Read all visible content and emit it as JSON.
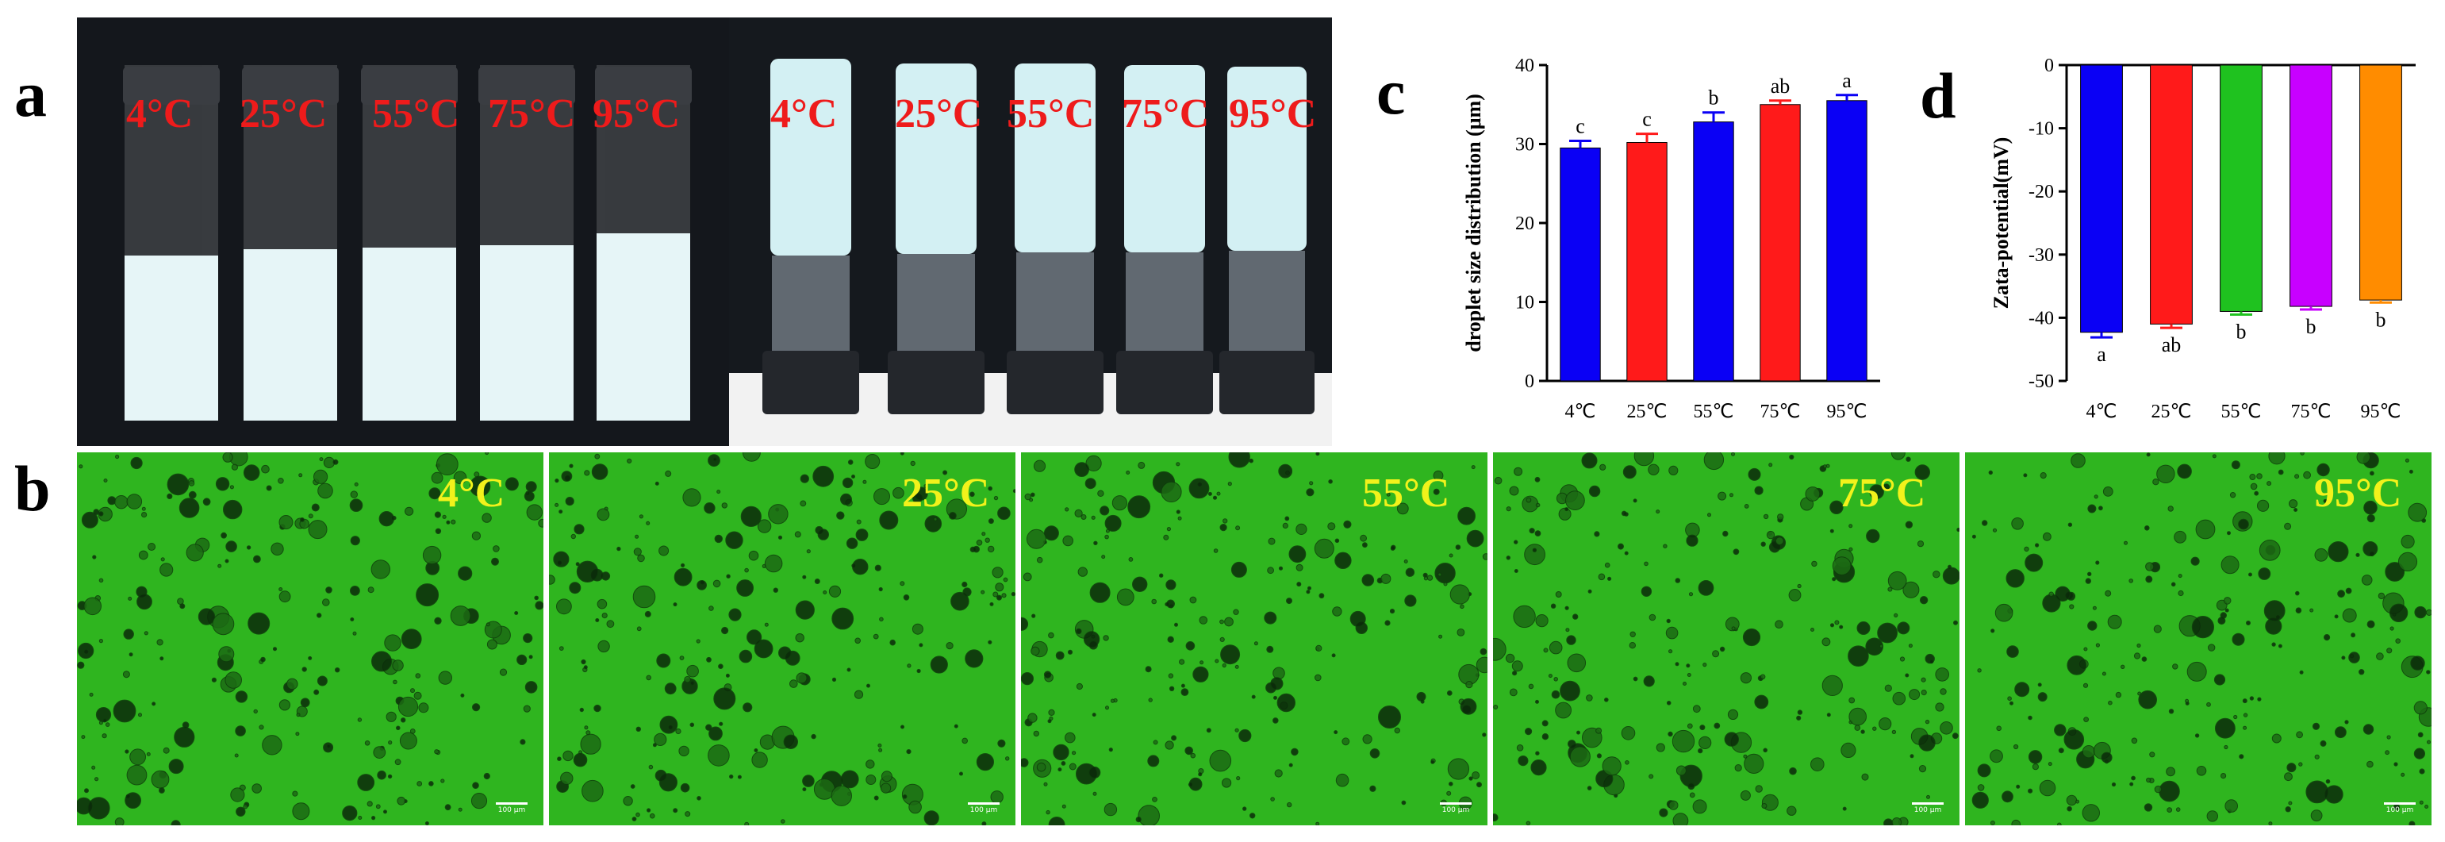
{
  "panels": {
    "a": {
      "letter": "a",
      "left_photo_labels": [
        "4°C",
        "25°C",
        "55°C",
        "75°C",
        "95°C"
      ],
      "right_photo_labels": [
        "4°C",
        "25°C",
        "55°C",
        "75°C",
        "95°C"
      ]
    },
    "b": {
      "letter": "b",
      "labels": [
        "4°C",
        "25°C",
        "55°C",
        "75°C",
        "95°C"
      ],
      "scalebar_text": [
        "100 μm",
        "100 μm",
        "100 μm",
        "100 μm",
        "100 μm"
      ]
    },
    "c": {
      "letter": "c"
    },
    "d": {
      "letter": "d"
    }
  },
  "chart_data": [
    {
      "panel": "c",
      "type": "bar",
      "categories": [
        "4℃",
        "25℃",
        "55℃",
        "75℃",
        "95℃"
      ],
      "values": [
        29.5,
        30.2,
        32.8,
        35.0,
        35.5
      ],
      "errors": [
        0.9,
        1.1,
        1.2,
        0.5,
        0.7
      ],
      "significance": [
        "c",
        "c",
        "b",
        "ab",
        "a"
      ],
      "colors": [
        "#0a00f5",
        "#ff1a1a",
        "#0a00f5",
        "#ff1a1a",
        "#0a00f5"
      ],
      "xlabel": "",
      "ylabel": "droplet size distribution (μm)",
      "ylim": [
        0,
        40
      ],
      "yticks": [
        0,
        10,
        20,
        30,
        40
      ]
    },
    {
      "panel": "d",
      "type": "bar",
      "categories": [
        "4℃",
        "25℃",
        "55℃",
        "75℃",
        "95℃"
      ],
      "values": [
        -42.3,
        -41.0,
        -39.0,
        -38.2,
        -37.2
      ],
      "errors": [
        0.8,
        0.6,
        0.5,
        0.5,
        0.4
      ],
      "significance": [
        "a",
        "ab",
        "b",
        "b",
        "b"
      ],
      "colors": [
        "#0a00f5",
        "#ff1a1a",
        "#1fc21f",
        "#c800ff",
        "#ff8c00"
      ],
      "xlabel": "",
      "ylabel": "Zata-potential(mV)",
      "ylim": [
        -50,
        0
      ],
      "yticks": [
        0,
        -10,
        -20,
        -30,
        -40,
        -50
      ]
    }
  ]
}
